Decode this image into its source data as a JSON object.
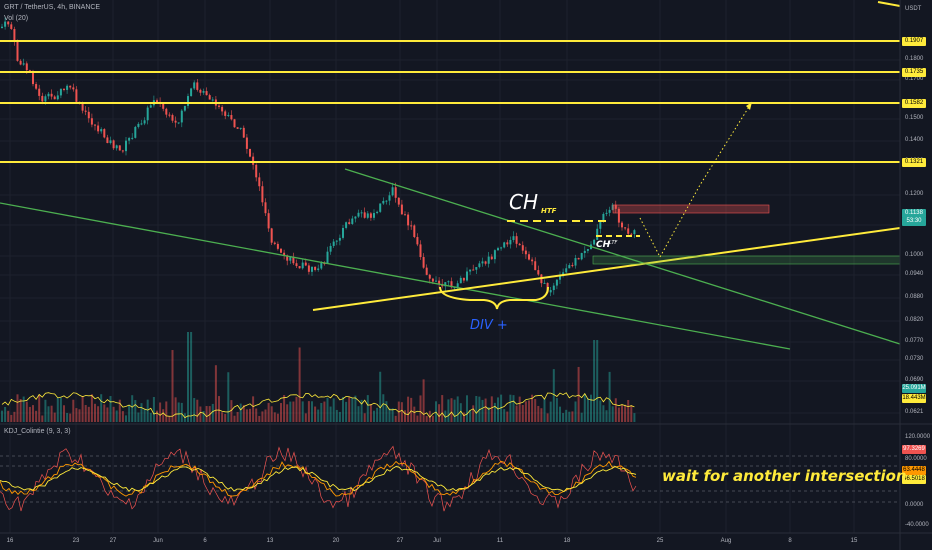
{
  "header": {
    "symbol_line": "GRT / TetherUS, 4h, BINANCE",
    "volume_indicator": "Vol (20)",
    "oscillator_indicator": "KDJ_Colintie (9, 3, 3)"
  },
  "price_axis": {
    "currency": "USDT",
    "ticks": [
      "0.1800",
      "0.1700",
      "0.1500",
      "0.1400",
      "0.1300",
      "0.1200",
      "0.1100",
      "0.1000",
      "0.0940",
      "0.0880",
      "0.0820",
      "0.0770",
      "0.0730",
      "0.0690",
      "0.0621"
    ]
  },
  "level_tags": [
    "0.1907",
    "0.1735",
    "0.1582",
    "0.1321"
  ],
  "current_price": {
    "value": "0.1138",
    "countdown": "53:30"
  },
  "volume_tags": [
    "25.091M",
    "18.443M"
  ],
  "oscillator_axis": {
    "ticks": [
      "120.0000",
      "80.0000",
      "0.0000",
      "-40.0000"
    ],
    "value_tags": [
      "97.3269",
      "63.4448",
      "46.5018"
    ]
  },
  "date_axis": [
    "16",
    "23",
    "27",
    "Jun",
    "6",
    "13",
    "20",
    "27",
    "Jul",
    "11",
    "18",
    "25",
    "Aug",
    "8",
    "15"
  ],
  "annotations": {
    "ch_label": "CH",
    "htf_label": "HTF",
    "ch_small_label": "CH",
    "ltf_label": "LTF",
    "div_label": "DIV +",
    "wait_label": "wait for another intersection"
  },
  "colors": {
    "background": "#131722",
    "up_candle": "#26a69a",
    "down_candle": "#ef5350",
    "level_line": "#ffeb3b",
    "trend_line": "#4caf50",
    "div_text": "#2962ff",
    "k_line": "#ff9800",
    "d_line": "#ffeb3b",
    "j_line": "#ef5350"
  }
}
